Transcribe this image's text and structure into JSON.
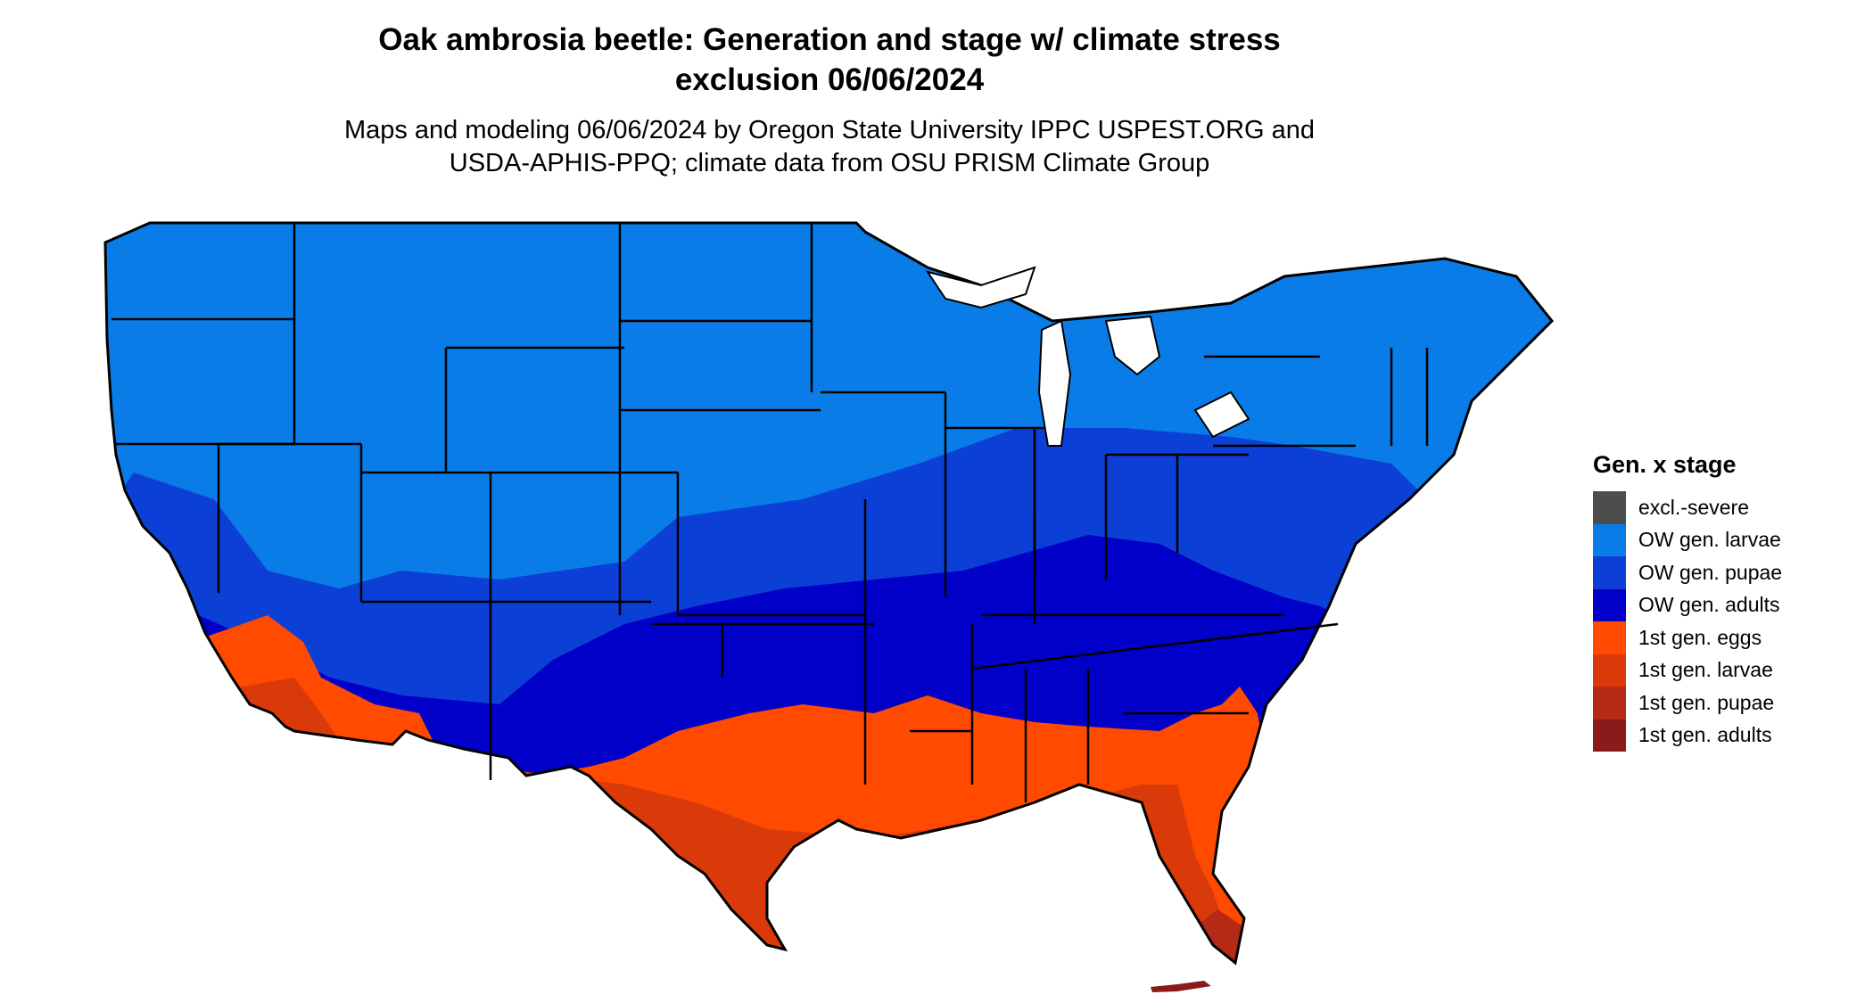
{
  "title_line1": "Oak ambrosia beetle: Generation and stage w/ climate stress",
  "title_line2": "exclusion 06/06/2024",
  "subtitle_line1": "Maps and modeling 06/06/2024 by Oregon State University IPPC USPEST.ORG and",
  "subtitle_line2": "USDA-APHIS-PPQ; climate data from OSU PRISM Climate Group",
  "legend": {
    "title": "Gen. x stage",
    "items": [
      {
        "label": "excl.-severe",
        "color": "#4d4d4d"
      },
      {
        "label": "OW gen. larvae",
        "color": "#0a7ce8"
      },
      {
        "label": "OW gen. pupae",
        "color": "#0b3fd6"
      },
      {
        "label": "OW gen. adults",
        "color": "#0000c8"
      },
      {
        "label": "1st gen. eggs",
        "color": "#ff4a00"
      },
      {
        "label": "1st gen. larvae",
        "color": "#da3a0a"
      },
      {
        "label": "1st gen. pupae",
        "color": "#b42a16"
      },
      {
        "label": "1st gen. adults",
        "color": "#8b1a1a"
      }
    ]
  }
}
